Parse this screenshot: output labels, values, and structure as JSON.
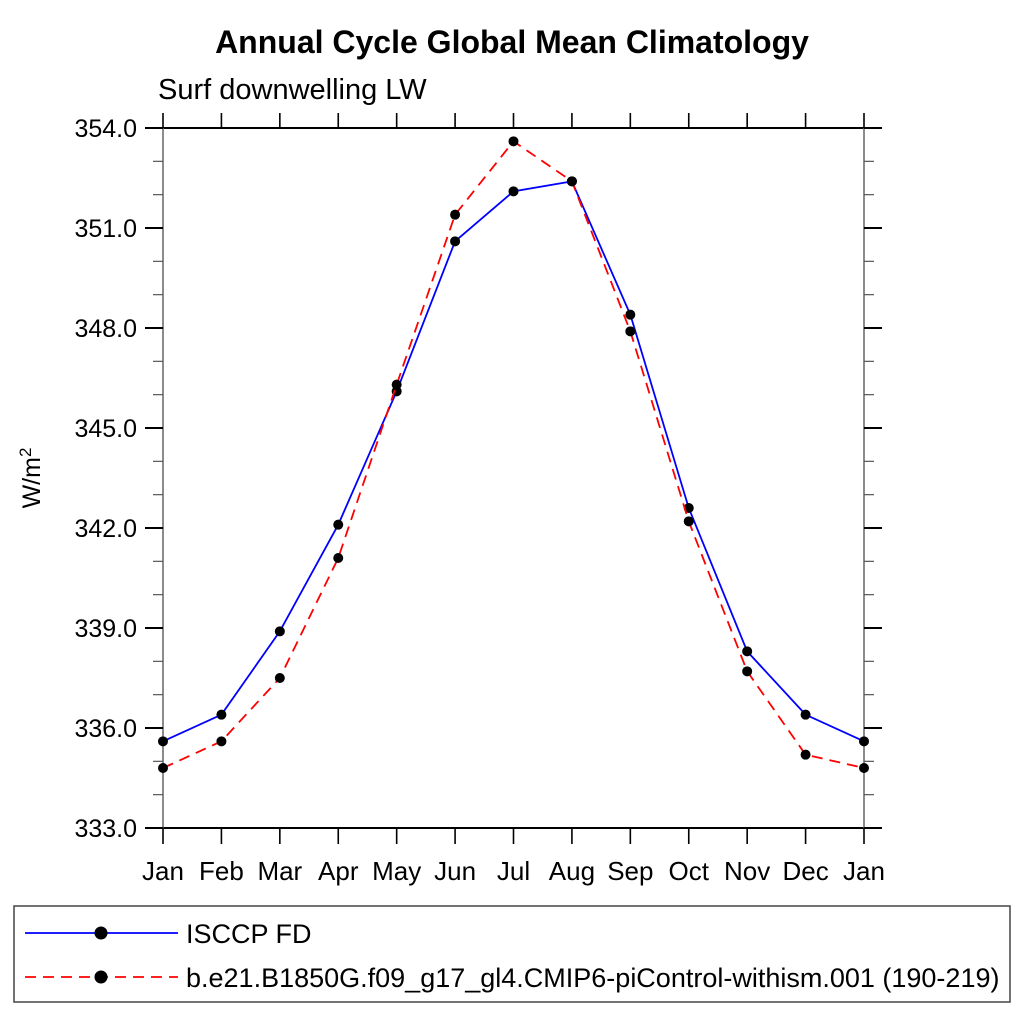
{
  "chart_data": {
    "type": "line",
    "title": "Annual Cycle Global Mean Climatology",
    "subtitle": "Surf downwelling LW",
    "ylabel": "W/m²",
    "ylim": [
      333.0,
      354.0
    ],
    "ytick_interval_major": 3.0,
    "ytick_interval_minor": 1.0,
    "ytick_labels": [
      "333.0",
      "336.0",
      "339.0",
      "342.0",
      "345.0",
      "348.0",
      "351.0",
      "354.0"
    ],
    "categories": [
      "Jan",
      "Feb",
      "Mar",
      "Apr",
      "May",
      "Jun",
      "Jul",
      "Aug",
      "Sep",
      "Oct",
      "Nov",
      "Dec",
      "Jan"
    ],
    "grid": false,
    "legend_position": "bottom-left-box",
    "series": [
      {
        "name": "ISCCP FD",
        "line_color": "#0000ff",
        "line_style": "solid",
        "marker": "filled-circle",
        "marker_color": "#000000",
        "values": [
          335.6,
          336.4,
          338.9,
          342.1,
          346.1,
          350.6,
          352.1,
          352.4,
          348.4,
          342.6,
          338.3,
          336.4,
          335.6
        ]
      },
      {
        "name": "b.e21.B1850G.f09_g17_gl4.CMIP6-piControl-withism.001 (190-219)",
        "line_color": "#ff0000",
        "line_style": "dashed",
        "marker": "filled-circle",
        "marker_color": "#000000",
        "values": [
          334.8,
          335.6,
          337.5,
          341.1,
          346.3,
          351.4,
          353.6,
          352.4,
          347.9,
          342.2,
          337.7,
          335.2,
          334.8
        ]
      }
    ]
  }
}
